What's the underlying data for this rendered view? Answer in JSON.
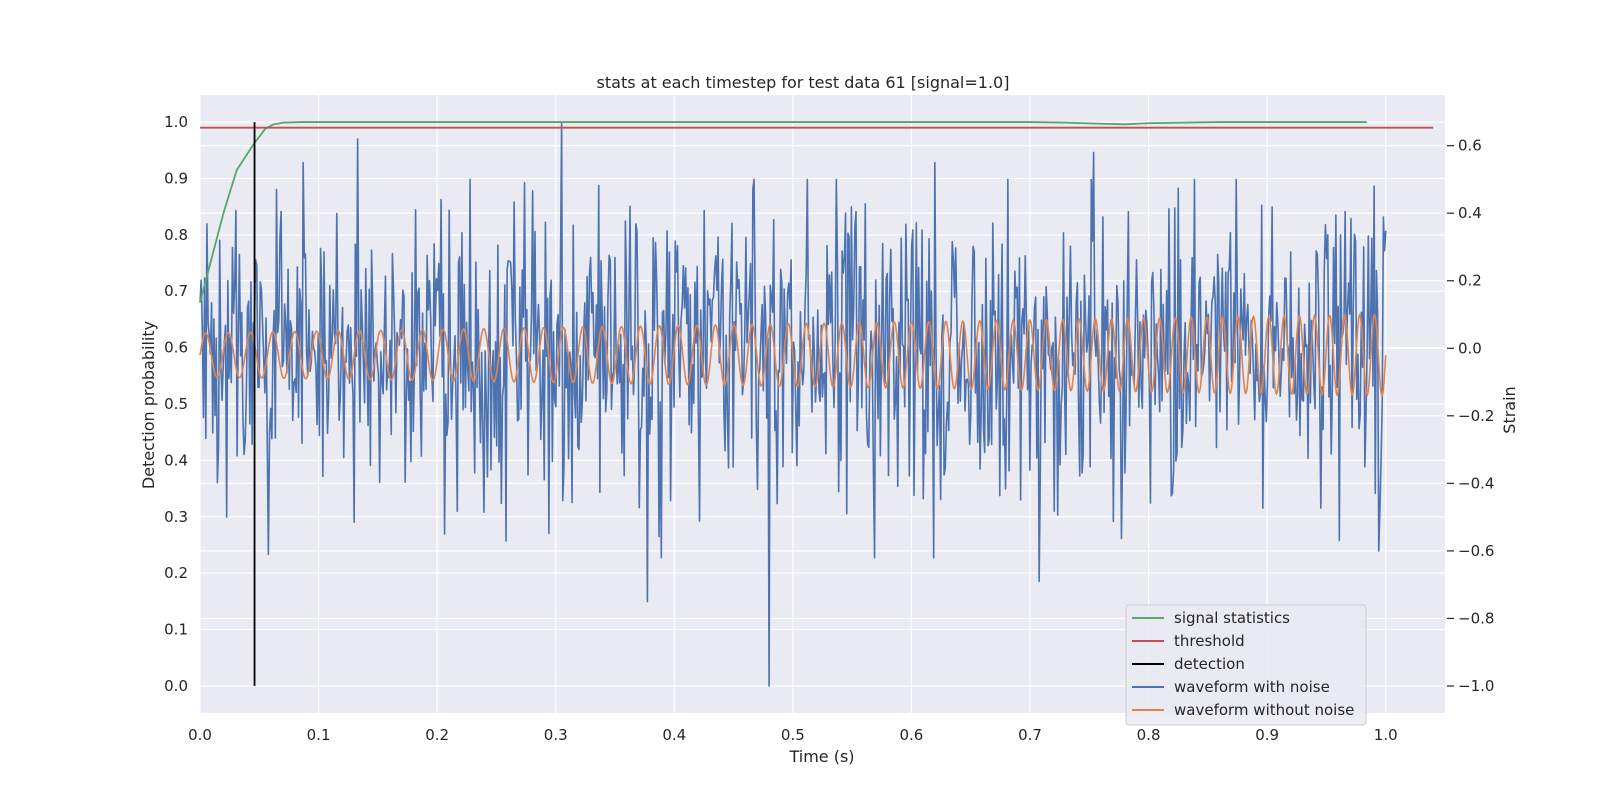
{
  "chart_data": {
    "type": "line",
    "title": "stats at each timestep for test data 61 [signal=1.0]",
    "xlabel": "Time (s)",
    "ylabel": "Detection probability",
    "ylabel_right": "Strain",
    "xlim": [
      0.0,
      1.05
    ],
    "ylim": [
      -0.048,
      1.048
    ],
    "ylim_right": [
      -1.08,
      0.75
    ],
    "x_ticks": [
      "0.0",
      "0.1",
      "0.2",
      "0.3",
      "0.4",
      "0.5",
      "0.6",
      "0.7",
      "0.8",
      "0.9",
      "1.0"
    ],
    "y_ticks_left": [
      "0.0",
      "0.1",
      "0.2",
      "0.3",
      "0.4",
      "0.5",
      "0.6",
      "0.7",
      "0.8",
      "0.9",
      "1.0"
    ],
    "y_ticks_right": [
      "−1.0",
      "−0.8",
      "−0.6",
      "−0.4",
      "−0.2",
      "0.0",
      "0.2",
      "0.4",
      "0.6"
    ],
    "grid": true,
    "legend_position": "bottom-right",
    "colors": {
      "signal_statistics": "#55a868",
      "threshold": "#c44e52",
      "detection": "#000000",
      "waveform_with_noise": "#4c72b0",
      "waveform_without_noise": "#dd8452",
      "plot_background": "#eaeaf2",
      "grid": "#ffffff"
    },
    "series": [
      {
        "name": "signal statistics",
        "axis": "left",
        "x": [
          0.0,
          0.01,
          0.02,
          0.031,
          0.045,
          0.055,
          0.062,
          0.07,
          0.085,
          0.1,
          0.2,
          0.3,
          0.4,
          0.5,
          0.6,
          0.7,
          0.73,
          0.76,
          0.78,
          0.8,
          0.83,
          0.86,
          0.9,
          0.95,
          0.984
        ],
        "values": [
          0.68,
          0.76,
          0.84,
          0.915,
          0.96,
          0.988,
          0.996,
          0.999,
          1.0,
          1.0,
          1.0,
          1.0,
          1.0,
          1.0,
          1.0,
          1.0,
          0.999,
          0.997,
          0.996,
          0.998,
          0.999,
          1.0,
          1.0,
          1.0,
          1.0
        ]
      },
      {
        "name": "threshold",
        "axis": "left",
        "x": [
          0.0,
          1.04
        ],
        "values": [
          0.99,
          0.99
        ]
      },
      {
        "name": "detection",
        "axis": "left",
        "x": [
          0.046,
          0.046
        ],
        "values": [
          0.0,
          1.0
        ]
      },
      {
        "name": "waveform with noise",
        "axis": "right",
        "x_start": 0.0,
        "x_end": 1.0,
        "n_points": 1024,
        "amplitude_std": 0.23,
        "peaks": [
          {
            "x": 0.305,
            "value": 0.67
          },
          {
            "x": 0.133,
            "value": 0.62
          },
          {
            "x": 0.087,
            "value": 0.55
          },
          {
            "x": 0.065,
            "value": 0.47
          },
          {
            "x": 0.48,
            "value": -1.0
          },
          {
            "x": 0.377,
            "value": -0.75
          },
          {
            "x": 0.708,
            "value": -0.69
          },
          {
            "x": 0.058,
            "value": -0.61
          },
          {
            "x": 0.206,
            "value": -0.55
          },
          {
            "x": 0.022,
            "value": -0.5
          },
          {
            "x": 0.994,
            "value": -0.6
          },
          {
            "x": 0.99,
            "value": 0.48
          },
          {
            "x": 0.62,
            "value": 0.55
          },
          {
            "x": 0.754,
            "value": 0.58
          },
          {
            "x": 0.545,
            "value": -0.49
          }
        ]
      },
      {
        "name": "waveform without noise",
        "axis": "right",
        "x_start": 0.0,
        "x_end": 1.0,
        "amplitude_start": 0.065,
        "amplitude_end": 0.12,
        "offset": -0.02,
        "frequency_start_hz": 52,
        "frequency_end_hz": 80
      }
    ]
  }
}
